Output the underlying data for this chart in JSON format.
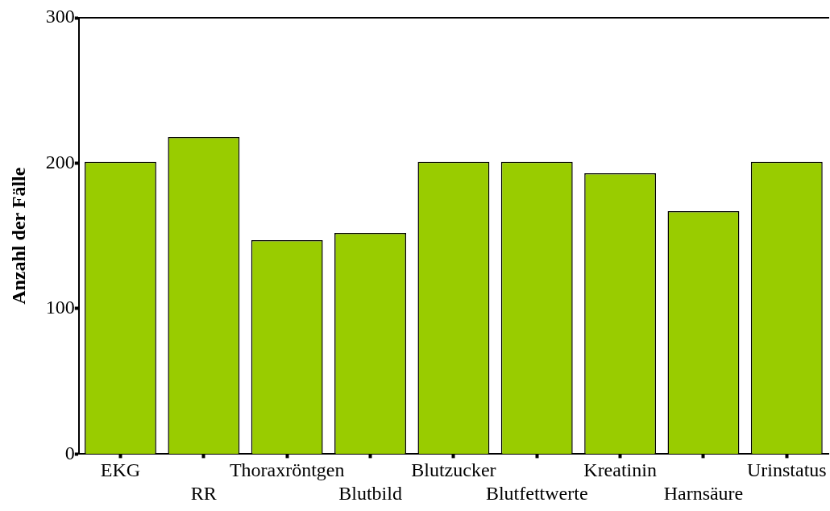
{
  "chart_data": {
    "type": "bar",
    "ylabel": "Anzahl der Fälle",
    "categories": [
      "EKG",
      "RR",
      "Thoraxröntgen",
      "Blutbild",
      "Blutzucker",
      "Blutfettwerte",
      "Kreatinin",
      "Harnsäure",
      "Urinstatus"
    ],
    "values": [
      201,
      218,
      147,
      152,
      201,
      201,
      193,
      167,
      201
    ],
    "color": "#99cc00",
    "ylim": [
      0,
      300
    ],
    "yticks": [
      0,
      100,
      200,
      300
    ],
    "grid": false,
    "legend": false
  }
}
